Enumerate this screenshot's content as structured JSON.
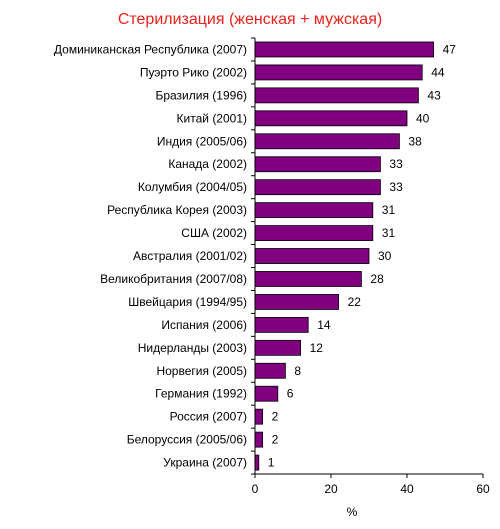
{
  "chart_data": {
    "type": "bar",
    "orientation": "horizontal",
    "title": "Стерилизация (женская + мужская)",
    "xlabel": "%",
    "ylabel": "",
    "xlim": [
      0,
      60
    ],
    "xticks": [
      0,
      20,
      40,
      60
    ],
    "bar_color": "#800080",
    "title_color": "#e8231b",
    "grid": false,
    "legend": "none",
    "categories": [
      "Доминиканская Республика (2007)",
      "Пуэрто Рико (2002)",
      "Бразилия (1996)",
      "Китай (2001)",
      "Индия (2005/06)",
      "Канада (2002)",
      "Колумбия (2004/05)",
      "Республика Корея (2003)",
      "США (2002)",
      "Австралия (2001/02)",
      "Великобритания (2007/08)",
      "Швейцария  (1994/95)",
      "Испания  (2006)",
      "Нидерланды (2003)",
      "Норвегия (2005)",
      "Германия (1992)",
      "Россия (2007)",
      "Белоруссия (2005/06)",
      "Украина (2007)"
    ],
    "values": [
      47,
      44,
      43,
      40,
      38,
      33,
      33,
      31,
      31,
      30,
      28,
      22,
      14,
      12,
      8,
      6,
      2,
      2,
      1
    ]
  }
}
